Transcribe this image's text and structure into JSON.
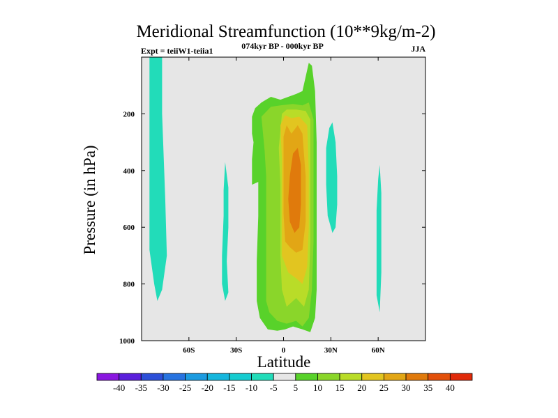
{
  "chart_data": {
    "type": "contour",
    "title": "Meridional Streamfunction (10**9kg/m-2)",
    "left_string": "Expt = teiiW1-teiia1",
    "center_string": "074kyr BP - 000kyr BP",
    "right_string": "JJA",
    "xlabel": "Latitude",
    "ylabel": "Pressure (in hPa)",
    "xlim": [
      -90,
      90
    ],
    "ylim": [
      1000,
      0
    ],
    "x_ticks": [
      {
        "value": -60,
        "label": "60S"
      },
      {
        "value": -30,
        "label": "30S"
      },
      {
        "value": 0,
        "label": "0"
      },
      {
        "value": 30,
        "label": "30N"
      },
      {
        "value": 60,
        "label": "60N"
      }
    ],
    "y_ticks": [
      {
        "value": 200,
        "label": "200"
      },
      {
        "value": 400,
        "label": "400"
      },
      {
        "value": 600,
        "label": "600"
      },
      {
        "value": 800,
        "label": "800"
      },
      {
        "value": 1000,
        "label": "1000"
      }
    ],
    "background_color": "#e6e6e6",
    "colorbar": {
      "levels": [
        -40,
        -35,
        -30,
        -25,
        -20,
        -15,
        -10,
        -5,
        5,
        10,
        15,
        20,
        25,
        30,
        35,
        40
      ],
      "colors": [
        "#8a17e0",
        "#5a1fdb",
        "#2c4fd8",
        "#2773e0",
        "#1c9be0",
        "#15b6dd",
        "#16ccd0",
        "#22dcb9",
        "#e6e6e6",
        "#58d22a",
        "#8ad62a",
        "#b9dc28",
        "#e2c520",
        "#e2a615",
        "#e07a0c",
        "#e2500b",
        "#e02a0a"
      ]
    },
    "regions": [
      {
        "value": -7,
        "outline": [
          [
            -85,
            0
          ],
          [
            -77,
            0
          ],
          [
            -77,
            200
          ],
          [
            -75,
            500
          ],
          [
            -74,
            700
          ],
          [
            -77,
            820
          ],
          [
            -80,
            860
          ],
          [
            -82,
            800
          ],
          [
            -85,
            680
          ]
        ]
      },
      {
        "value": -7,
        "outline": [
          [
            -37,
            370
          ],
          [
            -35,
            460
          ],
          [
            -35,
            600
          ],
          [
            -36,
            720
          ],
          [
            -35,
            830
          ],
          [
            -37,
            860
          ],
          [
            -39,
            800
          ],
          [
            -39,
            700
          ],
          [
            -38,
            560
          ],
          [
            -38,
            470
          ]
        ]
      },
      {
        "value": -7,
        "outline": [
          [
            31,
            230
          ],
          [
            33,
            300
          ],
          [
            34,
            420
          ],
          [
            34,
            520
          ],
          [
            33,
            600
          ],
          [
            31,
            620
          ],
          [
            28,
            560
          ],
          [
            27,
            450
          ],
          [
            27,
            320
          ],
          [
            29,
            250
          ]
        ]
      },
      {
        "value": -7,
        "outline": [
          [
            61,
            380
          ],
          [
            62,
            480
          ],
          [
            62,
            640
          ],
          [
            62,
            760
          ],
          [
            61,
            900
          ],
          [
            59,
            840
          ],
          [
            59,
            700
          ],
          [
            59,
            540
          ],
          [
            60,
            430
          ]
        ]
      },
      {
        "value": 7,
        "outline": [
          [
            -20,
            210
          ],
          [
            -18,
            180
          ],
          [
            -14,
            160
          ],
          [
            -8,
            140
          ],
          [
            -2,
            150
          ],
          [
            8,
            130
          ],
          [
            12,
            120
          ],
          [
            16,
            20
          ],
          [
            18,
            30
          ],
          [
            20,
            120
          ],
          [
            21,
            300
          ],
          [
            21,
            600
          ],
          [
            21,
            820
          ],
          [
            20,
            920
          ],
          [
            17,
            970
          ],
          [
            12,
            960
          ],
          [
            6,
            950
          ],
          [
            1,
            960
          ],
          [
            -4,
            965
          ],
          [
            -10,
            960
          ],
          [
            -15,
            920
          ],
          [
            -17,
            860
          ],
          [
            -17,
            720
          ],
          [
            -16,
            560
          ],
          [
            -16,
            440
          ],
          [
            -20,
            450
          ],
          [
            -20,
            360
          ],
          [
            -19,
            300
          ],
          [
            -20,
            270
          ]
        ]
      },
      {
        "value": 12,
        "outline": [
          [
            -14,
            210
          ],
          [
            -8,
            175
          ],
          [
            -2,
            170
          ],
          [
            6,
            165
          ],
          [
            12,
            170
          ],
          [
            16,
            160
          ],
          [
            19,
            220
          ],
          [
            19,
            450
          ],
          [
            19,
            650
          ],
          [
            18,
            820
          ],
          [
            16,
            920
          ],
          [
            12,
            950
          ],
          [
            8,
            930
          ],
          [
            2,
            940
          ],
          [
            -4,
            930
          ],
          [
            -9,
            900
          ],
          [
            -11,
            860
          ],
          [
            -11,
            700
          ],
          [
            -11,
            560
          ],
          [
            -11,
            420
          ],
          [
            -12,
            330
          ],
          [
            -13,
            270
          ]
        ]
      },
      {
        "value": 17,
        "outline": [
          [
            -1,
            200
          ],
          [
            2,
            185
          ],
          [
            8,
            185
          ],
          [
            14,
            190
          ],
          [
            17,
            220
          ],
          [
            17,
            450
          ],
          [
            17,
            650
          ],
          [
            16,
            820
          ],
          [
            13,
            880
          ],
          [
            8,
            850
          ],
          [
            2,
            880
          ],
          [
            -1,
            820
          ],
          [
            -2,
            700
          ],
          [
            -2,
            550
          ],
          [
            -2,
            450
          ],
          [
            -3,
            320
          ]
        ]
      },
      {
        "value": 22,
        "outline": [
          [
            -2,
            240
          ],
          [
            1,
            205
          ],
          [
            5,
            215
          ],
          [
            10,
            210
          ],
          [
            15,
            240
          ],
          [
            16,
            400
          ],
          [
            16,
            600
          ],
          [
            15,
            740
          ],
          [
            12,
            800
          ],
          [
            8,
            780
          ],
          [
            3,
            760
          ],
          [
            -1,
            700
          ],
          [
            -1,
            500
          ],
          [
            -1,
            360
          ]
        ]
      },
      {
        "value": 27,
        "outline": [
          [
            0,
            280
          ],
          [
            2,
            240
          ],
          [
            5,
            270
          ],
          [
            9,
            240
          ],
          [
            12,
            270
          ],
          [
            14,
            420
          ],
          [
            14,
            580
          ],
          [
            12,
            680
          ],
          [
            8,
            690
          ],
          [
            4,
            670
          ],
          [
            1,
            650
          ],
          [
            0,
            550
          ],
          [
            0,
            400
          ]
        ]
      },
      {
        "value": 32,
        "outline": [
          [
            4,
            420
          ],
          [
            6,
            340
          ],
          [
            9,
            320
          ],
          [
            11,
            380
          ],
          [
            11,
            520
          ],
          [
            10,
            600
          ],
          [
            7,
            620
          ],
          [
            4,
            580
          ],
          [
            3,
            500
          ]
        ]
      }
    ]
  }
}
